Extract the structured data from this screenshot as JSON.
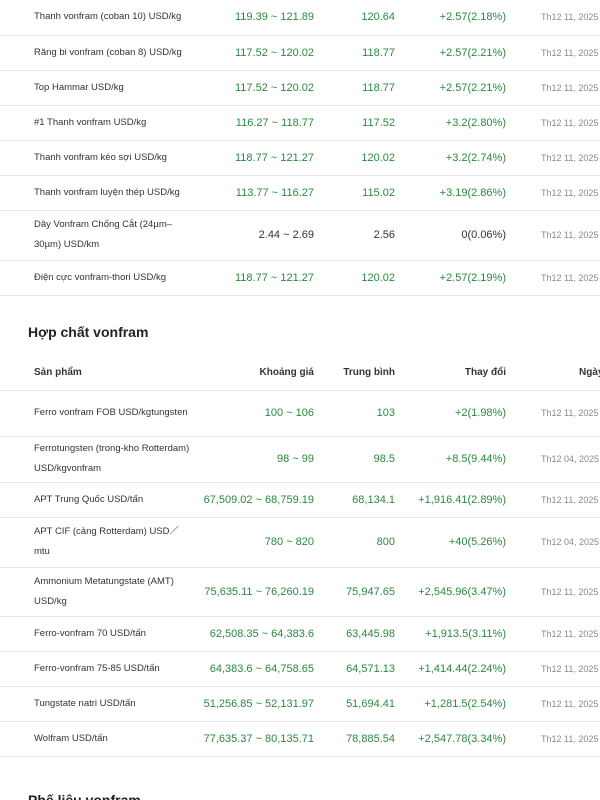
{
  "table1": {
    "rows": [
      {
        "product": "Thanh vonfram (coban 10) USD/kg",
        "range": "119.39 ~ 121.89",
        "avg": "120.64",
        "change": "+2.57(2.18%)",
        "date": "Th12 11, 2025"
      },
      {
        "product": "Răng bi vonfram (coban 8) USD/kg",
        "range": "117.52 ~ 120.02",
        "avg": "118.77",
        "change": "+2.57(2.21%)",
        "date": "Th12 11, 2025"
      },
      {
        "product": "Top Hammar USD/kg",
        "range": "117.52 ~ 120.02",
        "avg": "118.77",
        "change": "+2.57(2.21%)",
        "date": "Th12 11, 2025"
      },
      {
        "product": "#1 Thanh vonfram USD/kg",
        "range": "116.27 ~ 118.77",
        "avg": "117.52",
        "change": "+3.2(2.80%)",
        "date": "Th12 11, 2025"
      },
      {
        "product": "Thanh vonfram kéo sợi USD/kg",
        "range": "118.77 ~ 121.27",
        "avg": "120.02",
        "change": "+3.2(2.74%)",
        "date": "Th12 11, 2025"
      },
      {
        "product": "Thanh vonfram luyện thép USD/kg",
        "range": "113.77 ~ 116.27",
        "avg": "115.02",
        "change": "+3.19(2.86%)",
        "date": "Th12 11, 2025"
      },
      {
        "product": "Dây Vonfram Chống Cắt (24µm–30µm) USD/km",
        "range": "2.44 ~ 2.69",
        "avg": "2.56",
        "change": "0(0.06%)",
        "date": "Th12 11, 2025"
      },
      {
        "product": "Điện cực vonfram-thori USD/kg",
        "range": "118.77 ~ 121.27",
        "avg": "120.02",
        "change": "+2.57(2.19%)",
        "date": "Th12 11, 2025"
      }
    ]
  },
  "section2": {
    "title": "Hợp chất vonfram",
    "headers": {
      "product": "Sản phẩm",
      "range": "Khoảng giá",
      "avg": "Trung bình",
      "change": "Thay đổi",
      "date": "Ngày"
    },
    "rows": [
      {
        "product": "Ferro vonfram FOB USD/kgtungsten",
        "range": "100 ~ 106",
        "avg": "103",
        "change": "+2(1.98%)",
        "date": "Th12 11, 2025"
      },
      {
        "product": "Ferrotungsten (trong-kho Rotterdam) USD/kgvonfram",
        "range": "98 ~ 99",
        "avg": "98.5",
        "change": "+8.5(9.44%)",
        "date": "Th12 04, 2025"
      },
      {
        "product": "APT Trung Quốc USD/tấn",
        "range": "67,509.02 ~ 68,759.19",
        "avg": "68,134.1",
        "change": "+1,916.41(2.89%)",
        "date": "Th12 11, 2025"
      },
      {
        "product": "APT CIF (cảng Rotterdam) USD／mtu",
        "range": "780 ~ 820",
        "avg": "800",
        "change": "+40(5.26%)",
        "date": "Th12 04, 2025"
      },
      {
        "product": "Ammonium Metatungstate (AMT) USD/kg",
        "range": "75,635.11 ~ 76,260.19",
        "avg": "75,947.65",
        "change": "+2,545.96(3.47%)",
        "date": "Th12 11, 2025"
      },
      {
        "product": "Ferro-vonfram 70 USD/tấn",
        "range": "62,508.35 ~ 64,383.6",
        "avg": "63,445.98",
        "change": "+1,913.5(3.11%)",
        "date": "Th12 11, 2025"
      },
      {
        "product": "Ferro-vonfram 75-85 USD/tấn",
        "range": "64,383.6 ~ 64,758.65",
        "avg": "64,571.13",
        "change": "+1,414.44(2.24%)",
        "date": "Th12 11, 2025"
      },
      {
        "product": "Tungstate natri USD/tấn",
        "range": "51,256.85 ~ 52,131.97",
        "avg": "51,694.41",
        "change": "+1,281.5(2.54%)",
        "date": "Th12 11, 2025"
      },
      {
        "product": "Wolfram USD/tấn",
        "range": "77,635.37 ~ 80,135.71",
        "avg": "78,885.54",
        "change": "+2,547.78(3.34%)",
        "date": "Th12 11, 2025"
      }
    ]
  },
  "section3": {
    "title": "Phế liệu vonfram"
  }
}
